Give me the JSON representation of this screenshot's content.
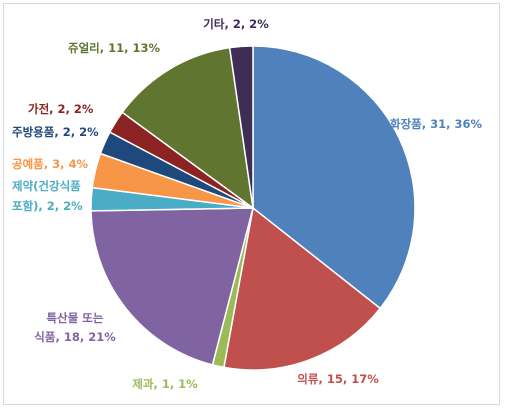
{
  "chart_data": {
    "type": "pie",
    "title": "",
    "start_angle_deg": 0,
    "direction": "clockwise",
    "slices": [
      {
        "label_lines": [
          "화장품, 31, 36%"
        ],
        "value": 31,
        "percent": 36,
        "color": "#4f81bd"
      },
      {
        "label_lines": [
          "의류, 15, 17%"
        ],
        "value": 15,
        "percent": 17,
        "color": "#c0504d"
      },
      {
        "label_lines": [
          "제과, 1, 1%"
        ],
        "value": 1,
        "percent": 1,
        "color": "#9bbb59"
      },
      {
        "label_lines": [
          "특산물 또는",
          "식품, 18, 21%"
        ],
        "value": 18,
        "percent": 21,
        "color": "#8064a2"
      },
      {
        "label_lines": [
          "제약(건강식품",
          "포함), 2, 2%"
        ],
        "value": 2,
        "percent": 2,
        "color": "#4bacc6"
      },
      {
        "label_lines": [
          "공예품, 3, 4%"
        ],
        "value": 3,
        "percent": 4,
        "color": "#f79646"
      },
      {
        "label_lines": [
          "주방용품, 2, 2%"
        ],
        "value": 2,
        "percent": 2,
        "color": "#1f497d"
      },
      {
        "label_lines": [
          "가전, 2, 2%"
        ],
        "value": 2,
        "percent": 2,
        "color": "#8b2323"
      },
      {
        "label_lines": [
          "쥬얼리, 11, 13%"
        ],
        "value": 11,
        "percent": 13,
        "color": "#5f7530"
      },
      {
        "label_lines": [
          "기타, 2, 2%"
        ],
        "value": 2,
        "percent": 2,
        "color": "#3f2d56"
      }
    ]
  }
}
